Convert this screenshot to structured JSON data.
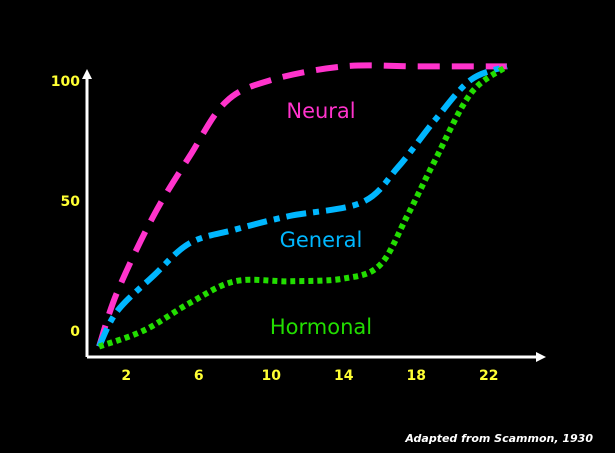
{
  "chart_data": {
    "type": "line",
    "title": "",
    "xlabel": "",
    "ylabel": "",
    "xlim": [
      0,
      24.5
    ],
    "ylim": [
      0,
      105
    ],
    "x_ticks": [
      2,
      6,
      10,
      14,
      18,
      22
    ],
    "y_ticks": [
      0,
      50,
      100
    ],
    "grid": false,
    "axis_color": "#ffffff",
    "tick_color": "#ffff33",
    "series": [
      {
        "name": "Neural",
        "color": "#ff33cc",
        "dash": "long-dash",
        "x": [
          0.5,
          1.5,
          3.5,
          5.5,
          7.5,
          10,
          14,
          18,
          22,
          23
        ],
        "y": [
          2,
          22,
          50,
          72,
          92,
          100,
          105,
          105,
          105,
          105
        ]
      },
      {
        "name": "General",
        "color": "#00b7ff",
        "dash": "dash-dot",
        "x": [
          0.5,
          1.5,
          3.5,
          5.5,
          8,
          11,
          15,
          17,
          19,
          21,
          23
        ],
        "y": [
          2,
          15,
          28,
          40,
          45,
          50,
          55,
          68,
          85,
          100,
          105
        ]
      },
      {
        "name": "Hormonal",
        "color": "#22dd00",
        "dash": "dotted",
        "x": [
          0.5,
          3,
          5.5,
          8,
          11,
          14,
          16,
          17.5,
          19,
          21,
          23
        ],
        "y": [
          2,
          8,
          18,
          26,
          26,
          27,
          32,
          50,
          70,
          95,
          105
        ]
      }
    ]
  },
  "source_note": "Adapted from Scammon, 1930"
}
